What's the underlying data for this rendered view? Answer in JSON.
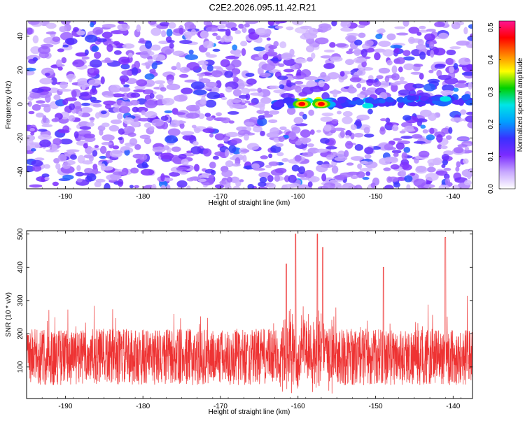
{
  "figure_title": "C2E2.2026.095.11.42.R21",
  "chart_data": [
    {
      "type": "heatmap",
      "xlabel": "Height of straight line (km)",
      "ylabel": "Frequency (Hz)",
      "xlim": [
        -195,
        -137.5
      ],
      "ylim": [
        -50,
        49
      ],
      "xticks": [
        -190,
        -180,
        -170,
        -160,
        -150,
        -140
      ],
      "yticks": [
        -40,
        -20,
        0,
        20,
        40
      ],
      "colorbar": {
        "label": "Normalized spectral amplitude",
        "range": [
          0,
          0.52
        ],
        "ticks": [
          0.0,
          0.1,
          0.2,
          0.3,
          0.4,
          0.5
        ],
        "tick_labels": [
          "0.0",
          "0.1",
          "0.2",
          "0.3",
          "0.4",
          "0.5"
        ],
        "stops": [
          "#ffffff",
          "#c8a8ff",
          "#7b2cff",
          "#3a30ff",
          "#00a0ff",
          "#00e5e5",
          "#00d000",
          "#ffff00",
          "#ff8000",
          "#ff0000",
          "#ff1493"
        ]
      },
      "signal_band": {
        "frequency_center_hz": 0,
        "height_range_km": [
          -163,
          -137.5
        ],
        "peaks": [
          {
            "height_km": -159.5,
            "frequency_hz": 0,
            "amplitude": 0.5
          },
          {
            "height_km": -157,
            "frequency_hz": 0,
            "amplitude": 0.48
          },
          {
            "height_km": -151,
            "frequency_hz": -1,
            "amplitude": 0.2
          },
          {
            "height_km": -141,
            "frequency_hz": 3,
            "amplitude": 0.18
          }
        ],
        "background_amplitude": 0.08
      }
    },
    {
      "type": "line",
      "xlabel": "Height of straight line (km)",
      "ylabel": "SNR (10 * v/v)",
      "xlim": [
        -195,
        -137.5
      ],
      "ylim": [
        5,
        510
      ],
      "xticks": [
        -190,
        -180,
        -170,
        -160,
        -150,
        -140
      ],
      "yticks": [
        100,
        200,
        300,
        400,
        500
      ],
      "series": [
        {
          "name": "SNR",
          "color": "#ee3333",
          "baseline": 130,
          "typical_range": [
            30,
            260
          ],
          "peaks": [
            {
              "height_km": -160.3,
              "snr": 500
            },
            {
              "height_km": -157.5,
              "snr": 500
            },
            {
              "height_km": -156.8,
              "snr": 460
            },
            {
              "height_km": -141,
              "snr": 490
            },
            {
              "height_km": -161.5,
              "snr": 410
            },
            {
              "height_km": -149,
              "snr": 400
            }
          ]
        }
      ]
    }
  ]
}
